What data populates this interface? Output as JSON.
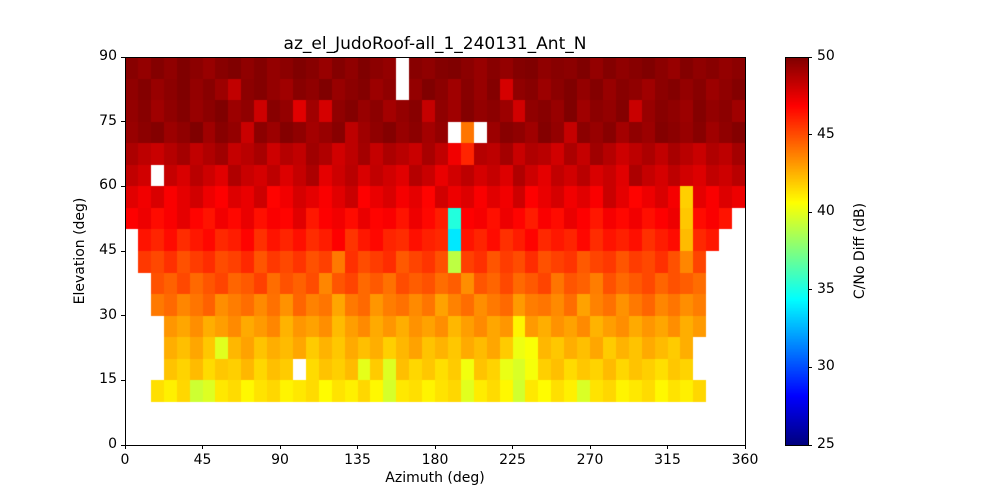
{
  "title": "az_el_JudoRoof-all_1_240131_Ant_N",
  "chart_data": {
    "type": "heatmap",
    "title": "az_el_JudoRoof-all_1_240131_Ant_N",
    "xlabel": "Azimuth (deg)",
    "ylabel": "Elevation (deg)",
    "xlim": [
      0,
      360
    ],
    "ylim": [
      0,
      90
    ],
    "x_ticks": [
      0,
      45,
      90,
      135,
      180,
      225,
      270,
      315,
      360
    ],
    "y_ticks": [
      0,
      15,
      30,
      45,
      60,
      75,
      90
    ],
    "grid": false,
    "colormap": "jet",
    "colorbar": {
      "label": "C/No Diff (dB)",
      "ticks": [
        25,
        30,
        35,
        40,
        45,
        50
      ],
      "vmin": 25,
      "vmax": 50
    },
    "azimuth_bin_deg": 7.5,
    "elevation_bin_deg": 5,
    "grid_order": "rows top-to-bottom cover elevation 90 down to 10 in 5-deg bins; columns left-to-right cover azimuth 0 to 360 in 7.5-deg bins; null = no data (white)",
    "values": [
      [
        49.8,
        49.5,
        49.9,
        49.6,
        50,
        49.7,
        49.4,
        49.8,
        50,
        49.6,
        49.9,
        49.5,
        49.7,
        50,
        49.8,
        49.4,
        49.9,
        49.6,
        50,
        49.7,
        49.5,
        null,
        49.8,
        49.6,
        49.9,
        50,
        49.7,
        49.4,
        49.8,
        49.5,
        49.9,
        50,
        49.6,
        49.8,
        49.7,
        50,
        49.5,
        49.9,
        49.6,
        49.8,
        50,
        49.7,
        49.4,
        49.9,
        49.6,
        49.8,
        49.5,
        49.7
      ],
      [
        49.6,
        49.9,
        49.4,
        49.7,
        50,
        49.5,
        49.8,
        49.3,
        48.4,
        49.7,
        49.9,
        49.5,
        49.2,
        49.8,
        49.6,
        50,
        49.4,
        49.7,
        49.9,
        49.3,
        49.6,
        null,
        49.5,
        50,
        49.7,
        49.2,
        49.8,
        49.4,
        49.9,
        47.9,
        49.6,
        49.8,
        49.3,
        49.7,
        50,
        49.5,
        49.9,
        49.4,
        49.8,
        49.6,
        49.2,
        49.7,
        49.9,
        49.5,
        49.8,
        49.3,
        49.6,
        49.9
      ],
      [
        49.5,
        49.8,
        49.2,
        49.6,
        49.9,
        49.4,
        49.7,
        50,
        49.3,
        49.6,
        48.1,
        49.8,
        49.5,
        47.6,
        49.2,
        47.9,
        49.6,
        49.9,
        49.4,
        49.7,
        49.1,
        49.5,
        49.8,
        48.3,
        49.6,
        49.2,
        49.9,
        49.5,
        49.7,
        49.3,
        48.0,
        49.6,
        49.8,
        49.4,
        50,
        49.2,
        49.7,
        49.5,
        49.9,
        48.2,
        49.4,
        49.8,
        49.6,
        49.3,
        49.9,
        49.5,
        49.7,
        49.2
      ],
      [
        49.4,
        49.7,
        49.9,
        49.3,
        49.6,
        50,
        49.2,
        49.8,
        49.5,
        48.2,
        49.7,
        49.3,
        49.9,
        49.6,
        49.1,
        49.4,
        49.8,
        48.5,
        49.2,
        49.6,
        49.9,
        49.4,
        49.7,
        49.1,
        49.5,
        null,
        44.0,
        null,
        49.3,
        49.8,
        49.6,
        49.2,
        49.9,
        49.5,
        48.3,
        49.7,
        49.4,
        49.8,
        49.1,
        49.6,
        49.3,
        49.9,
        49.7,
        49.4,
        49.8,
        49.2,
        49.6,
        49.9
      ],
      [
        48.9,
        48.5,
        48.2,
        48.7,
        49.1,
        48.4,
        48.8,
        49.2,
        48.3,
        48.6,
        49.0,
        48.1,
        48.7,
        48.4,
        49.2,
        48.8,
        48.0,
        48.5,
        49.1,
        48.3,
        48.9,
        48.6,
        48.2,
        49.0,
        48.4,
        47.2,
        46.0,
        48.7,
        48.5,
        49.1,
        48.2,
        48.8,
        48.6,
        48.0,
        48.9,
        48.3,
        49.2,
        48.7,
        48.1,
        48.5,
        48.9,
        48.4,
        49.0,
        48.6,
        48.2,
        48.8,
        48.5,
        49.1
      ],
      [
        48.4,
        48.0,
        null,
        48.3,
        47.8,
        48.6,
        48.1,
        47.6,
        48.8,
        48.2,
        47.9,
        48.5,
        47.7,
        48.3,
        48.9,
        47.5,
        48.1,
        48.6,
        47.8,
        48.4,
        48.0,
        47.6,
        48.7,
        48.2,
        47.4,
        48.0,
        48.5,
        47.9,
        48.3,
        47.7,
        48.8,
        48.1,
        47.5,
        48.4,
        48.0,
        48.6,
        47.8,
        48.2,
        47.6,
        48.9,
        48.3,
        47.9,
        48.5,
        48.0,
        47.7,
        48.4,
        48.1,
        48.6
      ],
      [
        47.6,
        47.2,
        47.8,
        47.0,
        47.5,
        48.0,
        47.3,
        46.9,
        47.7,
        47.4,
        48.1,
        46.8,
        47.2,
        47.9,
        47.5,
        47.0,
        47.6,
        48.2,
        46.9,
        47.4,
        47.8,
        47.1,
        47.5,
        46.8,
        48.0,
        47.3,
        47.7,
        47.0,
        47.6,
        47.2,
        48.1,
        46.9,
        47.4,
        47.9,
        47.2,
        47.6,
        47.0,
        48.2,
        47.5,
        46.8,
        47.3,
        47.8,
        47.1,
        41.8,
        47.5,
        47.0,
        47.7,
        47.3
      ],
      [
        46.9,
        47.3,
        46.6,
        47.0,
        47.5,
        46.8,
        46.4,
        47.2,
        46.7,
        47.4,
        46.5,
        47.0,
        46.8,
        47.6,
        46.3,
        46.9,
        47.2,
        46.6,
        47.4,
        46.8,
        47.0,
        46.4,
        47.3,
        46.7,
        46.2,
        35.2,
        46.9,
        47.1,
        46.5,
        47.3,
        46.8,
        46.2,
        47.0,
        46.6,
        47.4,
        46.9,
        46.3,
        47.1,
        46.7,
        47.2,
        46.5,
        46.9,
        47.3,
        42.0,
        46.6,
        47.0,
        46.4,
        null
      ],
      [
        null,
        46.4,
        46.0,
        46.6,
        45.8,
        46.3,
        46.7,
        45.9,
        46.2,
        46.8,
        45.7,
        46.4,
        46.0,
        46.5,
        45.8,
        46.2,
        46.9,
        45.6,
        46.3,
        46.7,
        46.0,
        45.8,
        46.5,
        46.1,
        45.9,
        33.8,
        46.4,
        46.0,
        46.6,
        45.7,
        46.2,
        46.8,
        45.9,
        46.3,
        46.0,
        46.7,
        45.8,
        46.4,
        46.1,
        46.5,
        45.7,
        46.2,
        46.6,
        42.3,
        45.9,
        46.3,
        null,
        null
      ],
      [
        null,
        45.5,
        45.1,
        45.7,
        44.9,
        45.4,
        45.8,
        45.0,
        45.3,
        45.9,
        44.8,
        45.5,
        45.1,
        45.6,
        44.9,
        45.3,
        43.9,
        45.7,
        45.0,
        45.4,
        45.8,
        44.7,
        45.2,
        45.6,
        44.9,
        39.0,
        45.3,
        45.7,
        44.8,
        45.4,
        45.0,
        45.8,
        44.9,
        45.3,
        45.6,
        44.7,
        45.2,
        45.5,
        44.8,
        45.4,
        45.1,
        45.7,
        44.9,
        43.6,
        45.2,
        null,
        null,
        null
      ],
      [
        null,
        null,
        44.9,
        44.5,
        45.1,
        44.3,
        44.8,
        45.2,
        44.4,
        44.7,
        45.3,
        44.2,
        44.9,
        44.5,
        45.0,
        43.6,
        44.8,
        45.2,
        44.3,
        44.7,
        44.1,
        45.0,
        44.6,
        44.9,
        44.2,
        44.6,
        43.4,
        44.8,
        44.4,
        45.1,
        44.3,
        44.7,
        45.2,
        44.0,
        44.8,
        44.5,
        43.8,
        44.9,
        44.3,
        44.7,
        45.1,
        44.4,
        44.9,
        44.6,
        44.2,
        null,
        null,
        null
      ],
      [
        null,
        null,
        43.9,
        44.3,
        43.6,
        44.0,
        44.5,
        43.4,
        43.8,
        44.2,
        43.5,
        44.1,
        43.3,
        44.4,
        43.7,
        44.0,
        42.8,
        43.9,
        44.3,
        43.2,
        43.8,
        44.1,
        43.5,
        44.0,
        42.9,
        43.7,
        44.2,
        43.4,
        43.9,
        44.3,
        43.1,
        43.8,
        44.0,
        43.5,
        44.2,
        42.9,
        43.7,
        44.1,
        43.3,
        43.9,
        44.4,
        43.6,
        44.0,
        43.4,
        43.8,
        null,
        null,
        null
      ],
      [
        null,
        null,
        null,
        43.2,
        42.8,
        43.4,
        42.6,
        43.0,
        43.5,
        42.7,
        43.1,
        43.6,
        42.5,
        43.2,
        42.9,
        43.4,
        42.3,
        43.0,
        43.5,
        42.7,
        43.2,
        42.6,
        43.3,
        42.9,
        43.4,
        42.4,
        43.0,
        43.5,
        42.8,
        43.2,
        40.9,
        43.1,
        42.6,
        43.3,
        42.9,
        43.5,
        42.5,
        43.0,
        43.4,
        42.7,
        43.2,
        42.8,
        43.4,
        42.6,
        43.1,
        null,
        null,
        null
      ],
      [
        null,
        null,
        null,
        42.6,
        42.2,
        42.8,
        42.0,
        39.9,
        42.4,
        42.9,
        42.1,
        42.6,
        42.3,
        42.8,
        41.9,
        42.5,
        42.0,
        42.7,
        42.2,
        42.6,
        41.8,
        42.4,
        42.9,
        42.1,
        42.5,
        42.0,
        42.7,
        42.3,
        42.8,
        41.9,
        40.2,
        40.5,
        42.4,
        42.0,
        42.6,
        42.2,
        42.8,
        41.9,
        42.5,
        42.1,
        42.7,
        42.3,
        41.9,
        42.6,
        null,
        null,
        null,
        null
      ],
      [
        null,
        null,
        null,
        42.1,
        41.7,
        42.3,
        41.5,
        42.0,
        41.8,
        42.4,
        41.6,
        42.2,
        41.9,
        null,
        41.5,
        42.1,
        41.8,
        42.3,
        40.0,
        41.9,
        39.8,
        42.2,
        41.6,
        42.0,
        41.4,
        41.9,
        40.3,
        42.1,
        41.7,
        40.1,
        39.7,
        40.4,
        41.8,
        42.2,
        41.5,
        42.0,
        41.7,
        42.3,
        41.6,
        42.1,
        41.8,
        41.4,
        42.0,
        41.7,
        null,
        null,
        null,
        null
      ],
      [
        null,
        null,
        41.4,
        41.0,
        41.6,
        39.4,
        39.8,
        41.2,
        41.5,
        40.8,
        41.3,
        41.6,
        40.9,
        41.2,
        41.5,
        40.7,
        41.3,
        41.0,
        41.6,
        40.8,
        39.6,
        41.2,
        41.4,
        40.9,
        41.3,
        41.6,
        39.9,
        41.1,
        41.5,
        40.8,
        39.5,
        41.2,
        40.7,
        41.4,
        41.0,
        39.7,
        41.3,
        41.6,
        40.9,
        41.2,
        41.5,
        40.8,
        41.3,
        41.0,
        41.6,
        null,
        null,
        null
      ]
    ]
  }
}
